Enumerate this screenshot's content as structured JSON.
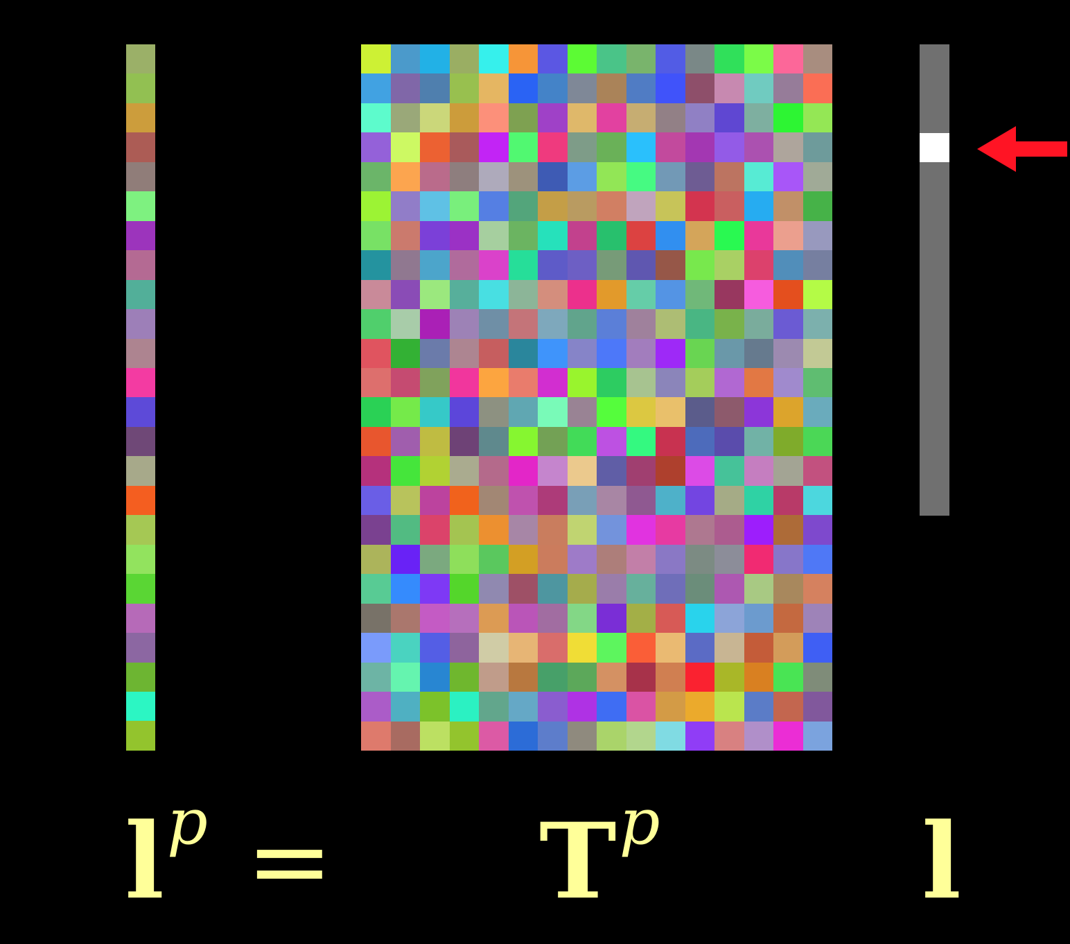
{
  "output_vector": {
    "colors": [
      "#9bb068",
      "#92c052",
      "#cc9d3c",
      "#ac5c55",
      "#907d79",
      "#7ef180",
      "#9c34bc",
      "#b46a93",
      "#52af99",
      "#9d7fb8",
      "#ad8490",
      "#f33ba2",
      "#5d4ad8",
      "#6f4877",
      "#a7a98a",
      "#f45e20",
      "#a5c854",
      "#92e35e",
      "#5ad634",
      "#b66ab8",
      "#8c67a2",
      "#6db532",
      "#2cf6c3",
      "#93c42d"
    ]
  },
  "matrix": {
    "columns": 16,
    "rows": [
      [
        "#cdf134",
        "#4b9acb",
        "#22b1e6",
        "#9aae63",
        "#36f0ec",
        "#f69538",
        "#5b57e3",
        "#5cfb34",
        "#4ac488",
        "#79b46c",
        "#525ce5",
        "#7a8887",
        "#30e05a",
        "#7bfb48",
        "#fc6799",
        "#a88d7f"
      ],
      [
        "#41a2e2",
        "#8067a8",
        "#4f7fae",
        "#98c04f",
        "#e5b662",
        "#2a63f4",
        "#4483c8",
        "#7f8897",
        "#aa8359",
        "#507cc4",
        "#4053fa",
        "#8e4f6a",
        "#c789b0",
        "#70cbc0",
        "#967c99",
        "#fa6e55"
      ],
      [
        "#5dfbcc",
        "#9aa879",
        "#cbd77a",
        "#cc9c3b",
        "#fc907a",
        "#7ea151",
        "#9f41c7",
        "#dfb86a",
        "#e241a0",
        "#c6ad72",
        "#928086",
        "#9080c4",
        "#5f47d2",
        "#7eafa0",
        "#2df533",
        "#94e755"
      ],
      [
        "#9461d9",
        "#cdf963",
        "#ec6132",
        "#a95a5b",
        "#c224f5",
        "#51f871",
        "#ef3a7e",
        "#7e9c88",
        "#6ab158",
        "#2ac0fc",
        "#c24a9d",
        "#a337b2",
        "#935be7",
        "#ab51b0",
        "#aea59c",
        "#6e9b9b"
      ],
      [
        "#6bb569",
        "#fca54f",
        "#ba6b8b",
        "#8e7e7e",
        "#aeaabb",
        "#9d927c",
        "#3e5bb4",
        "#5c9de4",
        "#92e656",
        "#46fa82",
        "#7299b6",
        "#6e5c93",
        "#bc7461",
        "#57ebd4",
        "#a856f8",
        "#a0aa97"
      ],
      [
        "#9cf334",
        "#917dc8",
        "#5fc1e5",
        "#79ef7c",
        "#557fe3",
        "#53a57b",
        "#c49e47",
        "#b99b61",
        "#d17f63",
        "#c0a4bd",
        "#c7c459",
        "#d3344f",
        "#c95f60",
        "#26acf1",
        "#c19068",
        "#46b248"
      ],
      [
        "#78e165",
        "#cb7a6d",
        "#7b40d8",
        "#9b31c5",
        "#a6cf9f",
        "#6bb461",
        "#26e1bb",
        "#c2418d",
        "#28c06d",
        "#dc4241",
        "#318ff0",
        "#d4a55a",
        "#29f951",
        "#e9389a",
        "#eb9f8e",
        "#9899be"
      ],
      [
        "#24939f",
        "#907890",
        "#4ca5cb",
        "#b06b9c",
        "#da42ca",
        "#26de99",
        "#5e5bc8",
        "#6d5fc4",
        "#779b78",
        "#5f57b0",
        "#965748",
        "#78e84d",
        "#a9d064",
        "#dc416c",
        "#518eba",
        "#767fa0"
      ],
      [
        "#c98a99",
        "#8a4cb6",
        "#9be87e",
        "#57af9b",
        "#48dfe2",
        "#8cb598",
        "#d48e7d",
        "#ec308c",
        "#e29a2b",
        "#65cda8",
        "#5494e4",
        "#70b879",
        "#98375f",
        "#f65cde",
        "#e44f1e",
        "#b4fb46"
      ],
      [
        "#50cf6c",
        "#a8cca9",
        "#aa20b6",
        "#9d82b6",
        "#6f8fa6",
        "#c47479",
        "#7ea8bc",
        "#61a48c",
        "#5b7fd8",
        "#9f819c",
        "#adbd74",
        "#49b683",
        "#79b24b",
        "#7aac9c",
        "#6b5bd3",
        "#7cb0ad"
      ],
      [
        "#e0545f",
        "#33b134",
        "#6b7baa",
        "#ad8591",
        "#c65e5f",
        "#2a869c",
        "#3f94fb",
        "#8684c8",
        "#4d78f9",
        "#a27dbd",
        "#9e29f7",
        "#69d552",
        "#6a98a9",
        "#667a8e",
        "#9c8ab0",
        "#c2c995"
      ],
      [
        "#dd6f6d",
        "#c54b71",
        "#80a25c",
        "#f1369d",
        "#fca540",
        "#e97c6c",
        "#d22ed0",
        "#99f42d",
        "#2dcc61",
        "#a7c390",
        "#8b85ba",
        "#a4cd5b",
        "#b168d2",
        "#e27844",
        "#a08acd",
        "#5fbd71"
      ],
      [
        "#2ad155",
        "#75ea4a",
        "#36c9c8",
        "#5c46da",
        "#8d9181",
        "#60a7b2",
        "#79fab8",
        "#998394",
        "#55fd3c",
        "#dcc841",
        "#e9c06b",
        "#5b5c8b",
        "#8d5a6c",
        "#8c36d9",
        "#dca42c",
        "#6aabbc"
      ],
      [
        "#e8562e",
        "#a05ead",
        "#bfbc42",
        "#6e4276",
        "#5f898d",
        "#86f630",
        "#73a155",
        "#42db58",
        "#bd51e2",
        "#34f980",
        "#c83250",
        "#4d6bbb",
        "#5a4cac",
        "#71b2a6",
        "#7fab2b",
        "#4bd756"
      ],
      [
        "#b5317c",
        "#45e53b",
        "#b1d233",
        "#aaab8f",
        "#b46a8b",
        "#e326c8",
        "#c585cd",
        "#ebc98d",
        "#605ea6",
        "#a03f70",
        "#ae402d",
        "#dc4be6",
        "#46c299",
        "#c57ec0",
        "#a3a494",
        "#c2517f"
      ],
      [
        "#6a5ee6",
        "#b8c35c",
        "#bc439e",
        "#f1621c",
        "#a28774",
        "#bf52ae",
        "#ad3b79",
        "#799fb7",
        "#a886a4",
        "#8f5991",
        "#4eb1c9",
        "#7345e1",
        "#a5ab86",
        "#2fd2a4",
        "#b83a68",
        "#4cd7de"
      ],
      [
        "#7a4190",
        "#52bb82",
        "#db436a",
        "#a4c451",
        "#ec9030",
        "#a786a6",
        "#c97d5e",
        "#c0d471",
        "#7393dc",
        "#e133e0",
        "#e73aa2",
        "#ae7890",
        "#ac5c8f",
        "#9d1efc",
        "#ad6b38",
        "#7e49cd"
      ],
      [
        "#acb45b",
        "#6922f6",
        "#7ba97f",
        "#8edf5b",
        "#5ac85e",
        "#d39f24",
        "#cb7c5d",
        "#9e7bc8",
        "#ad7e7a",
        "#c27fa8",
        "#8a78c5",
        "#7c8b83",
        "#8c8d99",
        "#f12a72",
        "#8776c9",
        "#4f78f6"
      ],
      [
        "#58cb94",
        "#358bfd",
        "#7e39f5",
        "#54d62b",
        "#9089b0",
        "#9e5066",
        "#4e96a0",
        "#a5ac4c",
        "#9a7daa",
        "#67b09c",
        "#6f6eb9",
        "#6b8d7a",
        "#ad58b1",
        "#a8c983",
        "#a8885d",
        "#d5815f"
      ],
      [
        "#787268",
        "#aa776d",
        "#c45bc4",
        "#b66fbc",
        "#dc9b54",
        "#ba55b8",
        "#a16da1",
        "#83d786",
        "#7a2ed6",
        "#a3af47",
        "#d75a56",
        "#29d3ec",
        "#8ca4d8",
        "#6c9bce",
        "#c46940",
        "#9e83b8"
      ],
      [
        "#7a9bfb",
        "#4ad3c0",
        "#545ee5",
        "#8e649d",
        "#d0cca6",
        "#e7b575",
        "#d96d6b",
        "#f0dd36",
        "#5df55e",
        "#fa5e37",
        "#eaba72",
        "#5b6bc5",
        "#c8b593",
        "#c45c39",
        "#d39c5a",
        "#3f5ff4"
      ],
      [
        "#6db4a5",
        "#65f4af",
        "#2886d2",
        "#6fb72e",
        "#c09c8a",
        "#b8783f",
        "#47a069",
        "#5ca85a",
        "#d49163",
        "#a7324a",
        "#d07f51",
        "#fa2230",
        "#a9b728",
        "#d98021",
        "#49e454",
        "#7f8c79"
      ],
      [
        "#ab5cc8",
        "#4fb0c2",
        "#7cc22a",
        "#2bf1c2",
        "#62a68c",
        "#65a8c6",
        "#8a5dcf",
        "#af32e4",
        "#3f6df3",
        "#da53a4",
        "#d39b46",
        "#ebaa2c",
        "#bae54e",
        "#5b7cc7",
        "#c3664f",
        "#81589c"
      ],
      [
        "#de7a6c",
        "#a86b61",
        "#bce062",
        "#93c42d",
        "#dc5aa5",
        "#2c6cd7",
        "#5d7dcb",
        "#8f8a7e",
        "#aad46a",
        "#b2d68d",
        "#80dbe3",
        "#903df6",
        "#d88181",
        "#b08fc9",
        "#eb2dd5",
        "#7ba3de"
      ]
    ]
  },
  "light_vector": {
    "count": 16,
    "active_index": 3,
    "base_color": "#707070",
    "active_color": "#ffffff"
  },
  "arrow": {
    "color": "#ff1424"
  },
  "labels": {
    "lhs": {
      "base": "l",
      "sup": "p"
    },
    "equals": "=",
    "matrix": {
      "base": "T",
      "sup": "p"
    },
    "rhs": {
      "base": "l"
    },
    "color": "#ffff99"
  }
}
